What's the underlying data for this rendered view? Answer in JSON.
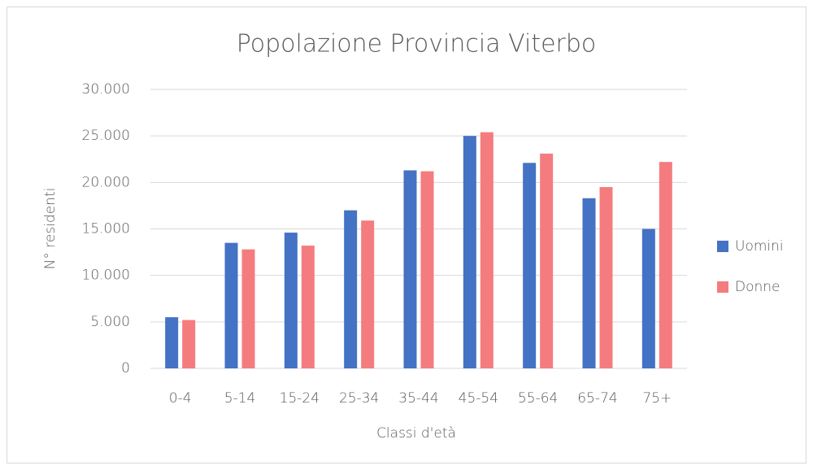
{
  "chart_data": {
    "type": "bar",
    "title": "Popolazione Provincia Viterbo",
    "x_label": "Classi d'età",
    "y_label": "N° residenti",
    "categories": [
      "0-4",
      "5-14",
      "15-24",
      "25-34",
      "35-44",
      "45-54",
      "55-64",
      "65-74",
      "75+"
    ],
    "series": [
      {
        "name": "Uomini",
        "color": "#4472c4",
        "values": [
          5500,
          13500,
          14600,
          17000,
          21300,
          25000,
          22100,
          18300,
          15000
        ]
      },
      {
        "name": "Donne",
        "color": "#f47c7e",
        "values": [
          5200,
          12800,
          13200,
          15900,
          21200,
          25400,
          23100,
          19500,
          22200
        ]
      }
    ],
    "ylim": [
      0,
      30000
    ],
    "yticks": [
      0,
      {
        "value": 5000,
        "label": "5.000"
      },
      {
        "value": 10000,
        "label": "10.000"
      },
      {
        "value": 15000,
        "label": "15.000"
      },
      {
        "value": 20000,
        "label": "20.000"
      },
      {
        "value": 25000,
        "label": "25.000"
      },
      {
        "value": 30000,
        "label": "30.000"
      }
    ],
    "grid": true,
    "legend": "right"
  }
}
